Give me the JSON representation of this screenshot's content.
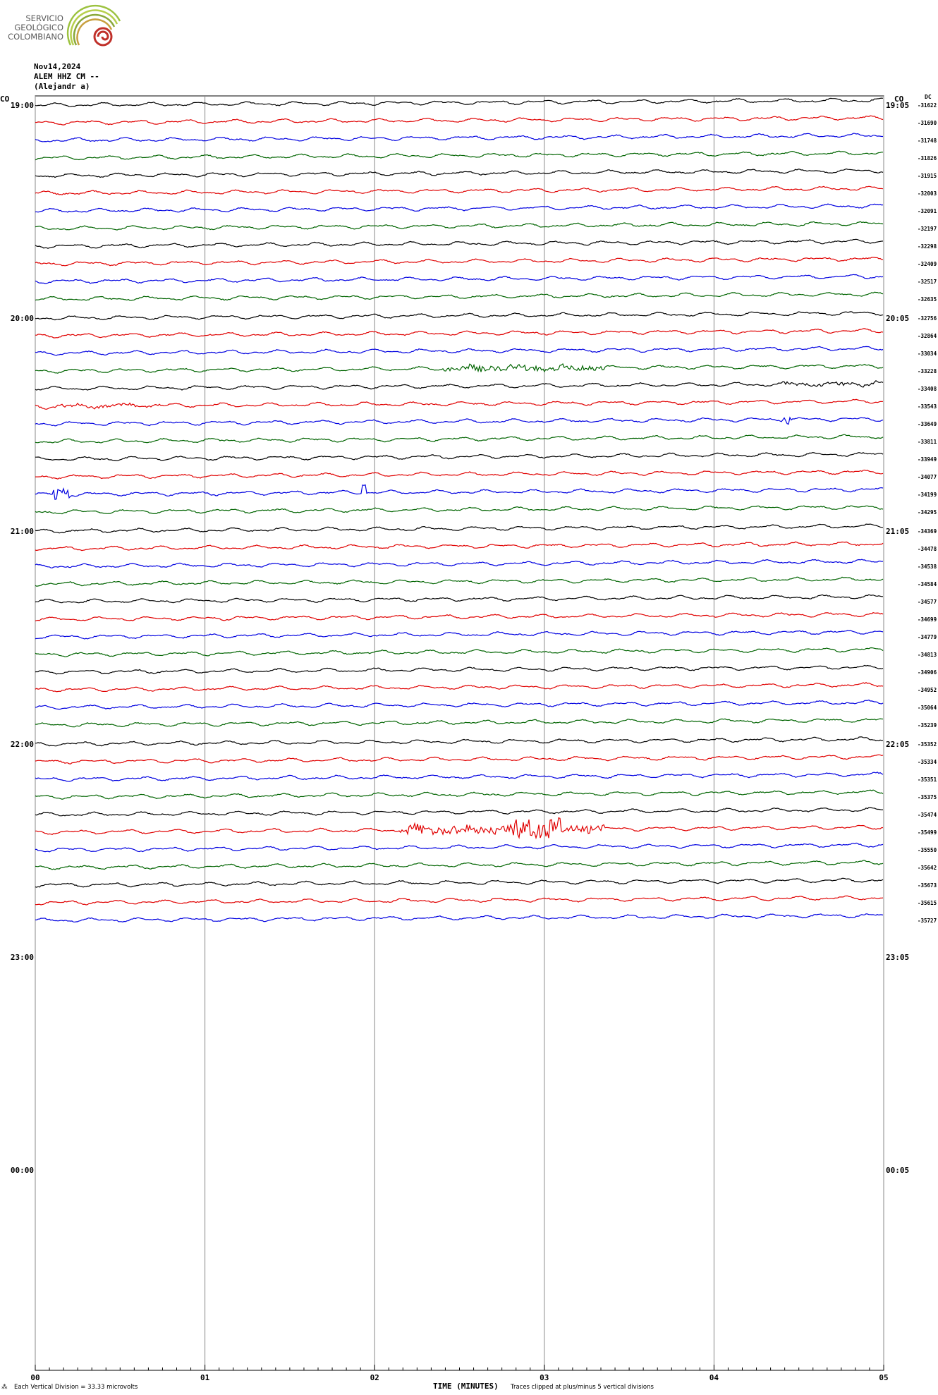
{
  "header": {
    "org_line1": "SERVICIO",
    "org_line2": "GEOLÓGICO",
    "org_line3": "COLOMBIANO",
    "date": "Nov14,2024",
    "station": "ALEM HHZ CM --",
    "location": "(Alejandr  a)"
  },
  "labels": {
    "left_tz": "CO",
    "right_tz": "CO",
    "dc_label": "DC",
    "left_times": [
      "19:00",
      "20:00",
      "21:00",
      "22:00",
      "23:00",
      "00:00"
    ],
    "right_times": [
      "19:05",
      "20:05",
      "21:05",
      "22:05",
      "23:05",
      "00:05"
    ]
  },
  "footer": {
    "scale_note": "Each Vertical Division =   33.33 microvolts",
    "corner_mark": "⁂",
    "clip_note": "Traces clipped at plus/minus 5 vertical divisions"
  },
  "chart_data": {
    "type": "line",
    "title": "",
    "xlabel": "TIME (MINUTES)",
    "x_ticks": [
      "00",
      "01",
      "02",
      "03",
      "04",
      "05"
    ],
    "xlim": [
      0,
      5
    ],
    "grid": true,
    "trace_colors": [
      "#000000",
      "#e00000",
      "#0000e0",
      "#006400"
    ],
    "dc_offsets": [
      -31622,
      -31690,
      -31748,
      -31826,
      -31915,
      -32003,
      -32091,
      -32197,
      -32298,
      -32409,
      -32517,
      -32635,
      -32756,
      -32864,
      -33034,
      -33228,
      -33408,
      -33543,
      -33649,
      -33811,
      -33949,
      -34077,
      -34199,
      -34295,
      -34369,
      -34478,
      -34538,
      -34584,
      -34577,
      -34699,
      -34779,
      -34813,
      -34906,
      -34952,
      -35064,
      -35239,
      -35352,
      -35334,
      -35351,
      -35375,
      -35474,
      -35499,
      -35550,
      -35642,
      -35673,
      -35615,
      -35727
    ]
  }
}
